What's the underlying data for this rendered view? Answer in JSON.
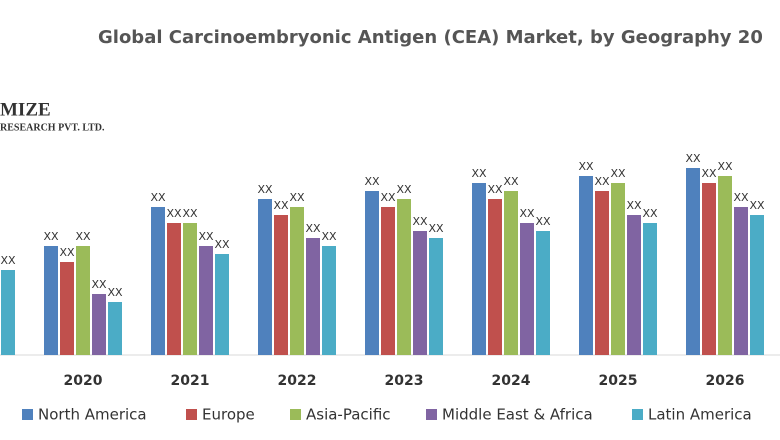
{
  "header": {
    "logo": "MIZE",
    "logo_sub": "RESEARCH PVT. LTD."
  },
  "chart_data": {
    "type": "bar",
    "title": "Global Carcinoembryonic Antigen (CEA) Market, by Geography 20",
    "categories": [
      null,
      "2020",
      "2021",
      "2022",
      "2023",
      "2024",
      "2025",
      "2026"
    ],
    "ylim": [
      0,
      200
    ],
    "series": [
      {
        "name": "North America",
        "color": "#4f81bd",
        "values": [
          null,
          109,
          148,
          156,
          164,
          172,
          179,
          187
        ],
        "value_labels": [
          null,
          "XX",
          "XX",
          "XX",
          "XX",
          "XX",
          "XX",
          "XX"
        ]
      },
      {
        "name": "Europe",
        "color": "#c0504d",
        "values": [
          null,
          93,
          132,
          140,
          148,
          156,
          164,
          172
        ],
        "value_labels": [
          null,
          "XX",
          "XX",
          "XX",
          "XX",
          "XX",
          "XX",
          "XX"
        ]
      },
      {
        "name": "Asia-Pacific",
        "color": "#9bbb59",
        "values": [
          null,
          109,
          132,
          148,
          156,
          164,
          172,
          179
        ],
        "value_labels": [
          null,
          "XX",
          "XX",
          "XX",
          "XX",
          "XX",
          "XX",
          "XX"
        ]
      },
      {
        "name": "Middle East & Africa",
        "color": "#8064a2",
        "values": [
          null,
          61,
          109,
          117,
          124,
          132,
          140,
          148
        ],
        "value_labels": [
          null,
          "XX",
          "XX",
          "XX",
          "XX",
          "XX",
          "XX",
          "XX"
        ]
      },
      {
        "name": "Latin America",
        "color": "#4bacc6",
        "values": [
          85,
          53,
          101,
          109,
          117,
          124,
          132,
          140
        ],
        "value_labels": [
          "XX",
          "XX",
          "XX",
          "XX",
          "XX",
          "XX",
          "XX",
          "XX"
        ]
      }
    ]
  }
}
